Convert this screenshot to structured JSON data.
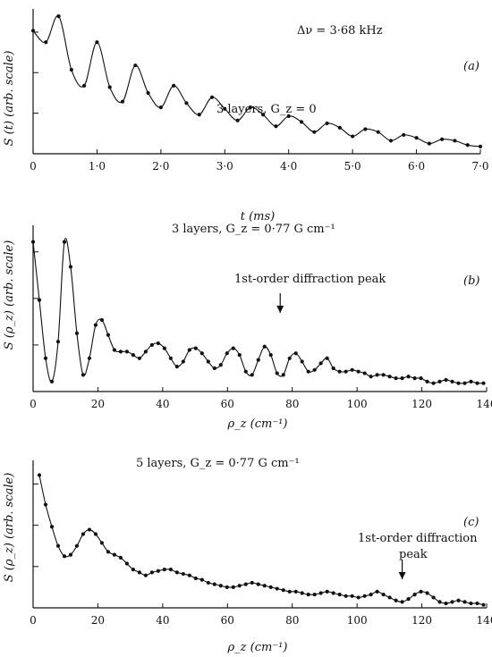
{
  "chart_data": [
    {
      "type": "scatter",
      "panel": "(a)",
      "annotations": [
        "Δν = 3·68 kHz",
        "3 layers, G_z = 0"
      ],
      "xlabel": "t (ms)",
      "ylabel": "S (t) (arb. scale)",
      "xlim": [
        0,
        7.0
      ],
      "ylim": [
        0,
        1.0
      ],
      "xticks": [
        "0",
        "1·0",
        "2·0",
        "3·0",
        "4·0",
        "5·0",
        "6·0",
        "7·0"
      ],
      "series": [
        {
          "x": [
            0,
            0.2,
            0.4,
            0.6,
            0.8,
            1.0,
            1.2,
            1.4,
            1.6,
            1.8,
            2.0,
            2.2,
            2.4,
            2.6,
            2.8,
            3.0,
            3.2,
            3.4,
            3.6,
            3.8,
            4.0,
            4.2,
            4.4,
            4.6,
            4.8,
            5.0,
            5.2,
            5.4,
            5.6,
            5.8,
            6.0,
            6.2,
            6.4,
            6.6,
            6.8,
            7.0
          ],
          "y": [
            0.85,
            0.77,
            0.95,
            0.58,
            0.47,
            0.77,
            0.46,
            0.36,
            0.61,
            0.42,
            0.32,
            0.47,
            0.35,
            0.27,
            0.39,
            0.31,
            0.23,
            0.32,
            0.27,
            0.19,
            0.26,
            0.22,
            0.15,
            0.21,
            0.18,
            0.12,
            0.17,
            0.15,
            0.09,
            0.13,
            0.11,
            0.07,
            0.1,
            0.09,
            0.06,
            0.05
          ]
        }
      ]
    },
    {
      "type": "scatter",
      "panel": "(b)",
      "annotations": [
        "3 layers, G_z = 0·77 G cm⁻¹",
        "1st-order diffraction peak"
      ],
      "arrow_x": 79,
      "xlabel": "ρ_z (cm⁻¹)",
      "ylabel": "S (ρ_z) (arb. scale)",
      "xlim": [
        0,
        145
      ],
      "ylim": [
        0,
        1.0
      ],
      "xticks": [
        "0",
        "20",
        "40",
        "60",
        "80",
        "100",
        "120",
        "140"
      ],
      "series": [
        {
          "x": [
            0,
            2,
            4,
            6,
            8,
            10,
            12,
            14,
            16,
            18,
            20,
            22,
            24,
            26,
            28,
            30,
            32,
            34,
            36,
            38,
            40,
            42,
            44,
            46,
            48,
            50,
            52,
            54,
            56,
            58,
            60,
            62,
            64,
            66,
            68,
            70,
            72,
            74,
            76,
            78,
            80,
            82,
            84,
            86,
            88,
            90,
            92,
            94,
            96,
            98,
            100,
            102,
            104,
            106,
            108,
            110,
            112,
            114,
            116,
            118,
            120,
            122,
            124,
            126,
            128,
            130,
            132,
            134,
            136,
            138,
            140,
            142,
            144
          ],
          "y": [
            0.9,
            0.55,
            0.2,
            0.06,
            0.3,
            0.9,
            0.75,
            0.35,
            0.1,
            0.2,
            0.4,
            0.43,
            0.34,
            0.25,
            0.24,
            0.24,
            0.22,
            0.2,
            0.24,
            0.28,
            0.29,
            0.26,
            0.2,
            0.15,
            0.18,
            0.25,
            0.26,
            0.23,
            0.18,
            0.14,
            0.16,
            0.23,
            0.26,
            0.22,
            0.12,
            0.1,
            0.19,
            0.27,
            0.22,
            0.11,
            0.1,
            0.2,
            0.23,
            0.18,
            0.12,
            0.13,
            0.17,
            0.2,
            0.14,
            0.12,
            0.12,
            0.13,
            0.12,
            0.11,
            0.09,
            0.1,
            0.1,
            0.09,
            0.08,
            0.08,
            0.09,
            0.08,
            0.08,
            0.06,
            0.05,
            0.06,
            0.07,
            0.06,
            0.05,
            0.05,
            0.06,
            0.05,
            0.05
          ]
        }
      ]
    },
    {
      "type": "scatter",
      "panel": "(c)",
      "annotations": [
        "5 layers, G_z = 0·77 G cm⁻¹",
        "1st-order diffraction",
        "peak"
      ],
      "arrow_x": 118,
      "xlabel": "ρ_z (cm⁻¹)",
      "ylabel": "S (ρ_z) (arb. scale)",
      "xlim": [
        0,
        145
      ],
      "ylim": [
        0,
        1.0
      ],
      "xticks": [
        "0",
        "20",
        "40",
        "60",
        "80",
        "100",
        "120",
        "140"
      ],
      "series": [
        {
          "x": [
            2,
            4,
            6,
            8,
            10,
            12,
            14,
            16,
            18,
            20,
            22,
            24,
            26,
            28,
            30,
            32,
            34,
            36,
            38,
            40,
            42,
            44,
            46,
            48,
            50,
            52,
            54,
            56,
            58,
            60,
            62,
            64,
            66,
            68,
            70,
            72,
            74,
            76,
            78,
            80,
            82,
            84,
            86,
            88,
            90,
            92,
            94,
            96,
            98,
            100,
            102,
            104,
            106,
            108,
            110,
            112,
            114,
            116,
            118,
            120,
            122,
            124,
            126,
            128,
            130,
            132,
            134,
            136,
            138,
            140,
            142,
            144
          ],
          "y": [
            0.9,
            0.7,
            0.55,
            0.42,
            0.35,
            0.36,
            0.42,
            0.5,
            0.53,
            0.5,
            0.44,
            0.38,
            0.36,
            0.34,
            0.3,
            0.26,
            0.24,
            0.22,
            0.24,
            0.25,
            0.26,
            0.26,
            0.24,
            0.23,
            0.22,
            0.2,
            0.19,
            0.17,
            0.16,
            0.15,
            0.14,
            0.14,
            0.15,
            0.16,
            0.17,
            0.16,
            0.15,
            0.14,
            0.13,
            0.12,
            0.11,
            0.11,
            0.1,
            0.09,
            0.09,
            0.1,
            0.11,
            0.1,
            0.09,
            0.08,
            0.08,
            0.07,
            0.08,
            0.09,
            0.11,
            0.09,
            0.07,
            0.05,
            0.04,
            0.06,
            0.09,
            0.11,
            0.1,
            0.07,
            0.04,
            0.03,
            0.04,
            0.05,
            0.04,
            0.03,
            0.03,
            0.02
          ]
        }
      ]
    }
  ]
}
